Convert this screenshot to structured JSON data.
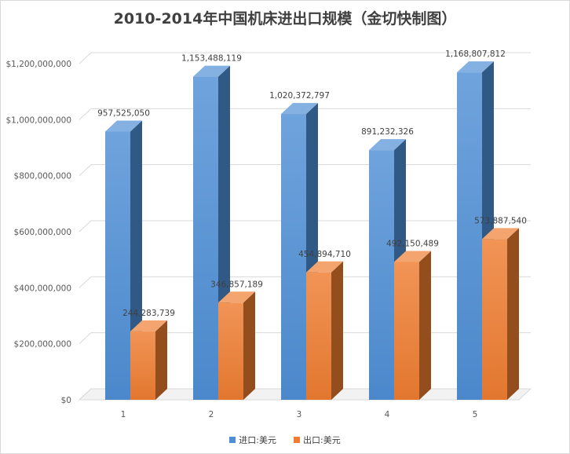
{
  "chart_data": {
    "type": "bar",
    "title": "2010-2014年中国机床进出口规模（金切快制图）",
    "categories": [
      "1",
      "2",
      "3",
      "4",
      "5"
    ],
    "series": [
      {
        "name": "进口:美元",
        "color": "#4f8fd6",
        "values": [
          957525050,
          1153488119,
          1020372797,
          891232326,
          1168807812
        ],
        "labels": [
          "957,525,050",
          "1,153,488,119",
          "1,020,372,797",
          "891,232,326",
          "1,168,807,812"
        ]
      },
      {
        "name": "出口:美元",
        "color": "#ee7d31",
        "values": [
          244283739,
          346857189,
          454894710,
          492150489,
          573887540
        ],
        "labels": [
          "244,283,739",
          "346,857,189",
          "454,894,710",
          "492,150,489",
          "573,887,540"
        ]
      }
    ],
    "ylim": [
      0,
      1200000000
    ],
    "yticks": [
      0,
      200000000,
      400000000,
      600000000,
      800000000,
      1000000000,
      1200000000
    ],
    "ytick_labels": [
      "$0",
      "$200,000,000",
      "$400,000,000",
      "$600,000,000",
      "$800,000,000",
      "$1,000,000,000",
      "$1,200,000,000"
    ],
    "grid": true,
    "legend": "bottom",
    "style": "3d-column"
  }
}
